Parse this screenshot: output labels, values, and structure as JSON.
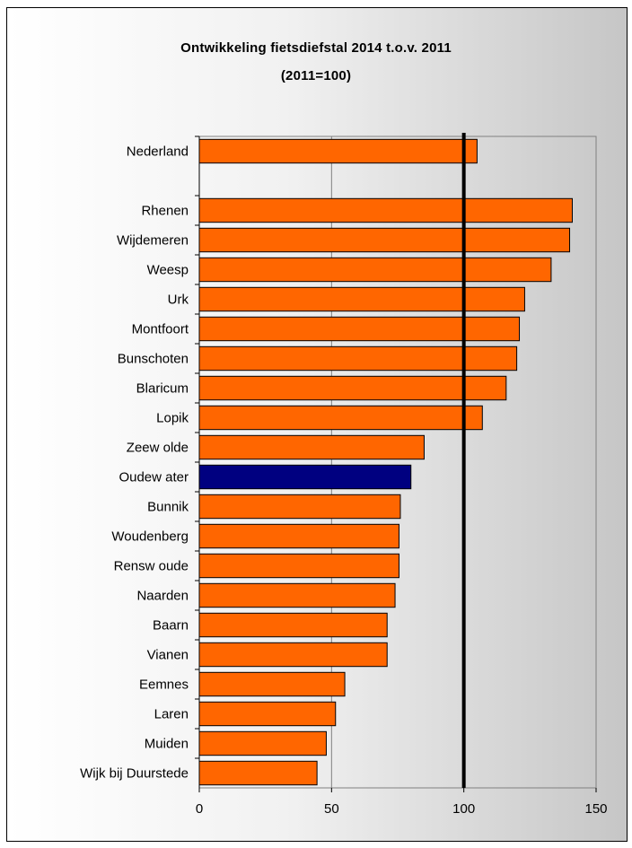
{
  "chart_data": {
    "type": "bar",
    "orientation": "horizontal",
    "title": "Ontwikkeling fietsdiefstal 2014 t.o.v. 2011",
    "subtitle": "(2011=100)",
    "categories": [
      "Nederland",
      "",
      "Rhenen",
      "Wijdemeren",
      "Weesp",
      "Urk",
      "Montfoort",
      "Bunschoten",
      "Blaricum",
      "Lopik",
      "Zeew olde",
      "Oudew ater",
      "Bunnik",
      "Woudenberg",
      "Rensw oude",
      "Naarden",
      "Baarn",
      "Vianen",
      "Eemnes",
      "Laren",
      "Muiden",
      "Wijk bij Duurstede"
    ],
    "values": [
      105,
      null,
      141,
      140,
      133,
      123,
      121,
      120,
      116,
      107,
      85,
      80,
      76,
      75.5,
      75.5,
      74,
      71,
      71,
      55,
      51.5,
      48,
      44.5
    ],
    "highlight_category": "Oudew ater",
    "xlim": [
      0,
      150
    ],
    "xticks": [
      "0",
      "50",
      "100",
      "150"
    ],
    "reference_line": 100,
    "grid": "vertical at 50",
    "colors": {
      "bar": "#ff6600",
      "highlight": "#000080",
      "bar_edge": "#000000",
      "reference_line": "#000000",
      "gridline": "#808080"
    }
  }
}
